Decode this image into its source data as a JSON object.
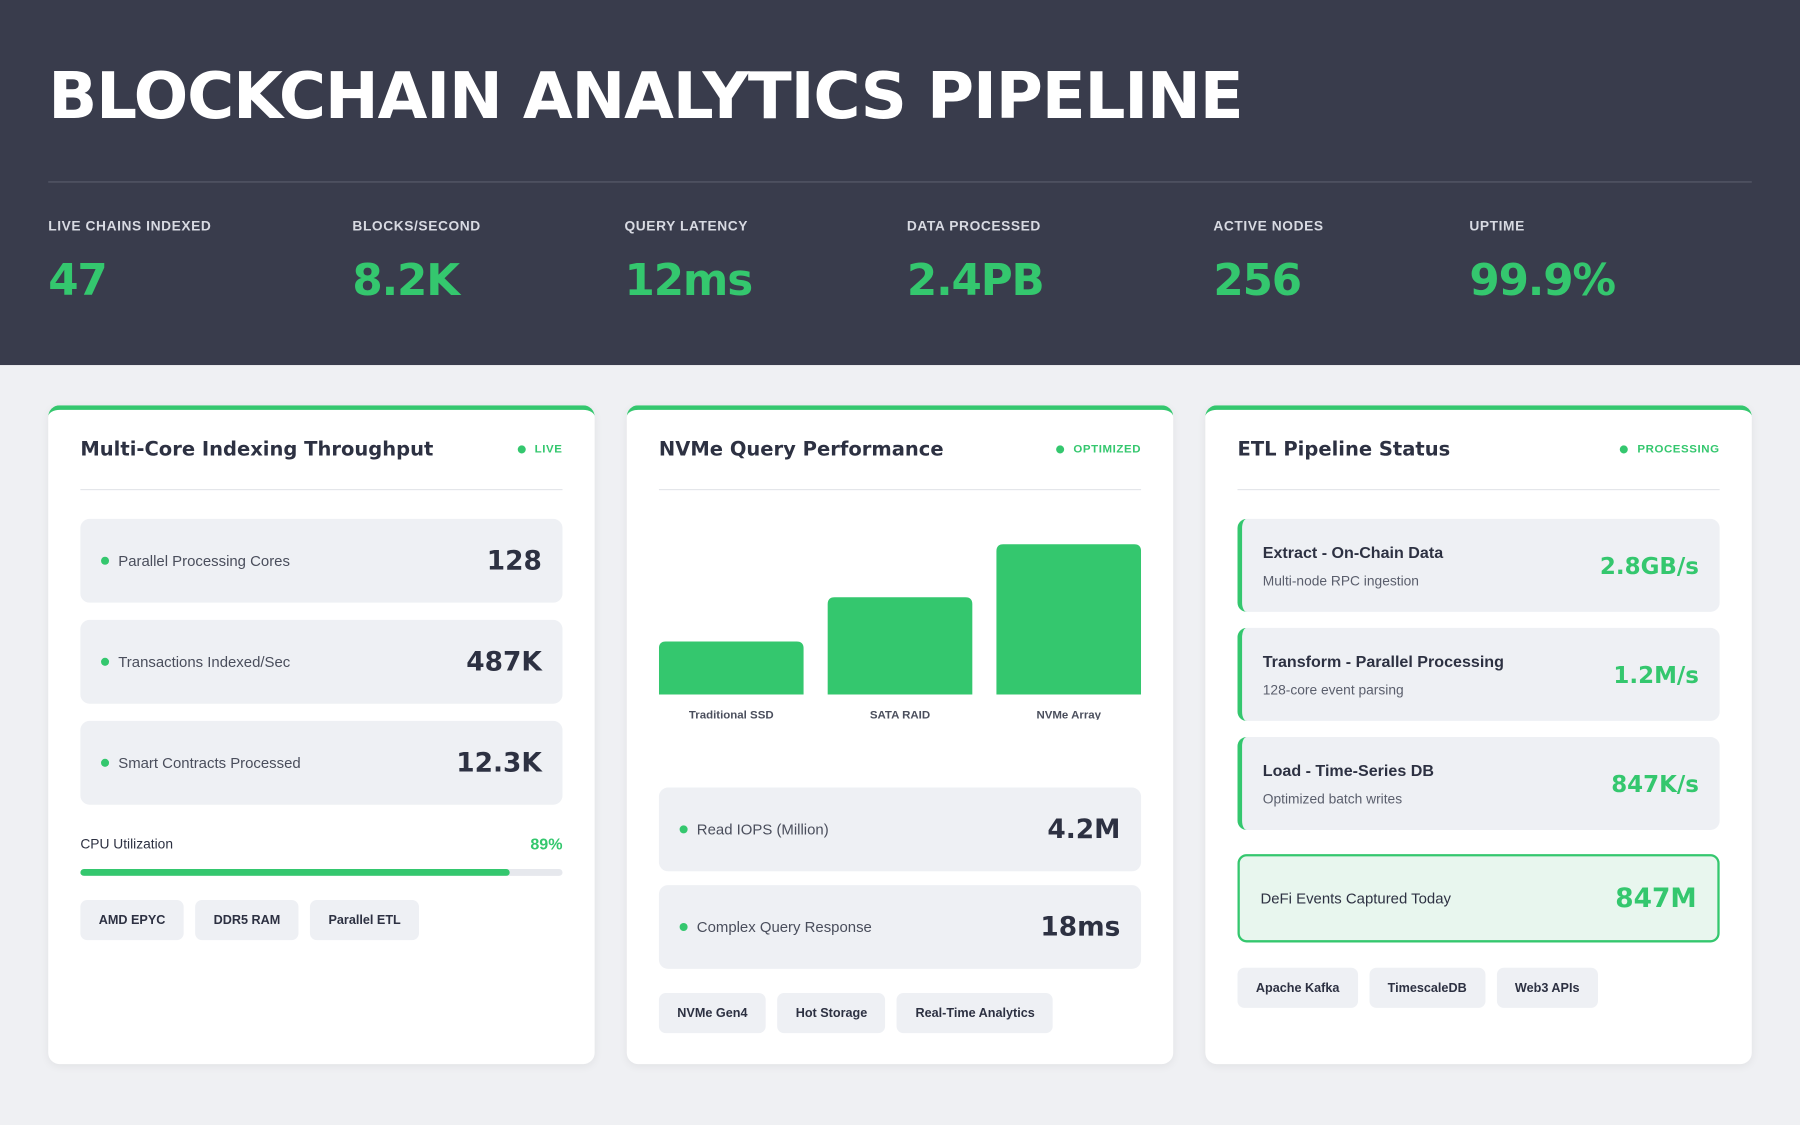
{
  "header": {
    "title": "BLOCKCHAIN ANALYTICS PIPELINE",
    "stats": [
      {
        "label": "LIVE CHAINS INDEXED",
        "value": "47"
      },
      {
        "label": "BLOCKS/SECOND",
        "value": "8.2K"
      },
      {
        "label": "QUERY LATENCY",
        "value": "12ms"
      },
      {
        "label": "DATA PROCESSED",
        "value": "2.4PB"
      },
      {
        "label": "ACTIVE NODES",
        "value": "256"
      },
      {
        "label": "UPTIME",
        "value": "99.9%"
      }
    ]
  },
  "cards": [
    {
      "title": "Multi-Core Indexing Throughput",
      "status": "LIVE",
      "metrics": [
        {
          "label": "Parallel Processing Cores",
          "value": "128"
        },
        {
          "label": "Transactions Indexed/Sec",
          "value": "487K"
        },
        {
          "label": "Smart Contracts Processed",
          "value": "12.3K"
        }
      ],
      "progress": {
        "label": "CPU Utilization",
        "value": 89,
        "value_label": "89%"
      },
      "tags": [
        "AMD EPYC",
        "DDR5 RAM",
        "Parallel ETL"
      ]
    },
    {
      "title": "NVMe Query Performance",
      "status": "OPTIMIZED",
      "chart_data": {
        "type": "bar",
        "categories": [
          "Traditional SSD",
          "SATA RAID",
          "NVMe Array"
        ],
        "values": [
          30,
          55,
          85
        ],
        "ylim": [
          0,
          100
        ],
        "color": "#34c76e"
      },
      "metrics": [
        {
          "label": "Read IOPS (Million)",
          "value": "4.2M"
        },
        {
          "label": "Complex Query Response",
          "value": "18ms"
        }
      ],
      "tags": [
        "NVMe Gen4",
        "Hot Storage",
        "Real-Time Analytics"
      ]
    },
    {
      "title": "ETL Pipeline Status",
      "status": "PROCESSING",
      "stages": [
        {
          "title": "Extract - On-Chain Data",
          "subtitle": "Multi-node RPC ingestion",
          "value": "2.8GB/s"
        },
        {
          "title": "Transform - Parallel Processing",
          "subtitle": "128-core event parsing",
          "value": "1.2M/s"
        },
        {
          "title": "Load - Time-Series DB",
          "subtitle": "Optimized batch writes",
          "value": "847K/s"
        }
      ],
      "highlight": {
        "label": "DeFi Events Captured Today",
        "value": "847M"
      },
      "tags": [
        "Apache Kafka",
        "TimescaleDB",
        "Web3 APIs"
      ]
    }
  ]
}
